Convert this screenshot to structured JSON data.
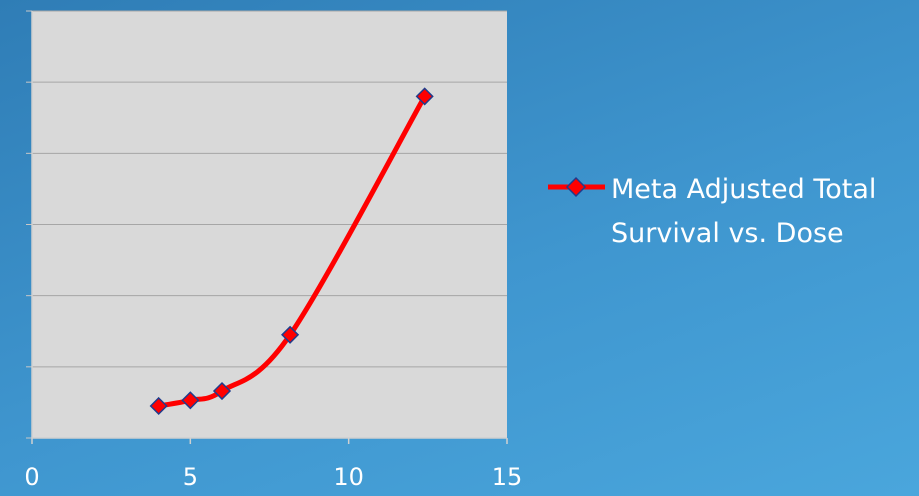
{
  "chart_data": {
    "type": "line",
    "x": [
      4,
      5,
      6,
      8.15,
      12.4
    ],
    "series": [
      {
        "name": "Meta Adjusted Total Survival vs. Dose",
        "color": "#ff0000",
        "values": [
          0.45,
          0.53,
          0.66,
          1.45,
          4.8
        ]
      }
    ],
    "xlim": [
      0,
      15
    ],
    "xticks": [
      0,
      5,
      10,
      15
    ],
    "ylim": [
      0,
      6
    ],
    "yticks": [
      0,
      1,
      2,
      3,
      4,
      5,
      6
    ],
    "grid": true,
    "legend": "right"
  }
}
